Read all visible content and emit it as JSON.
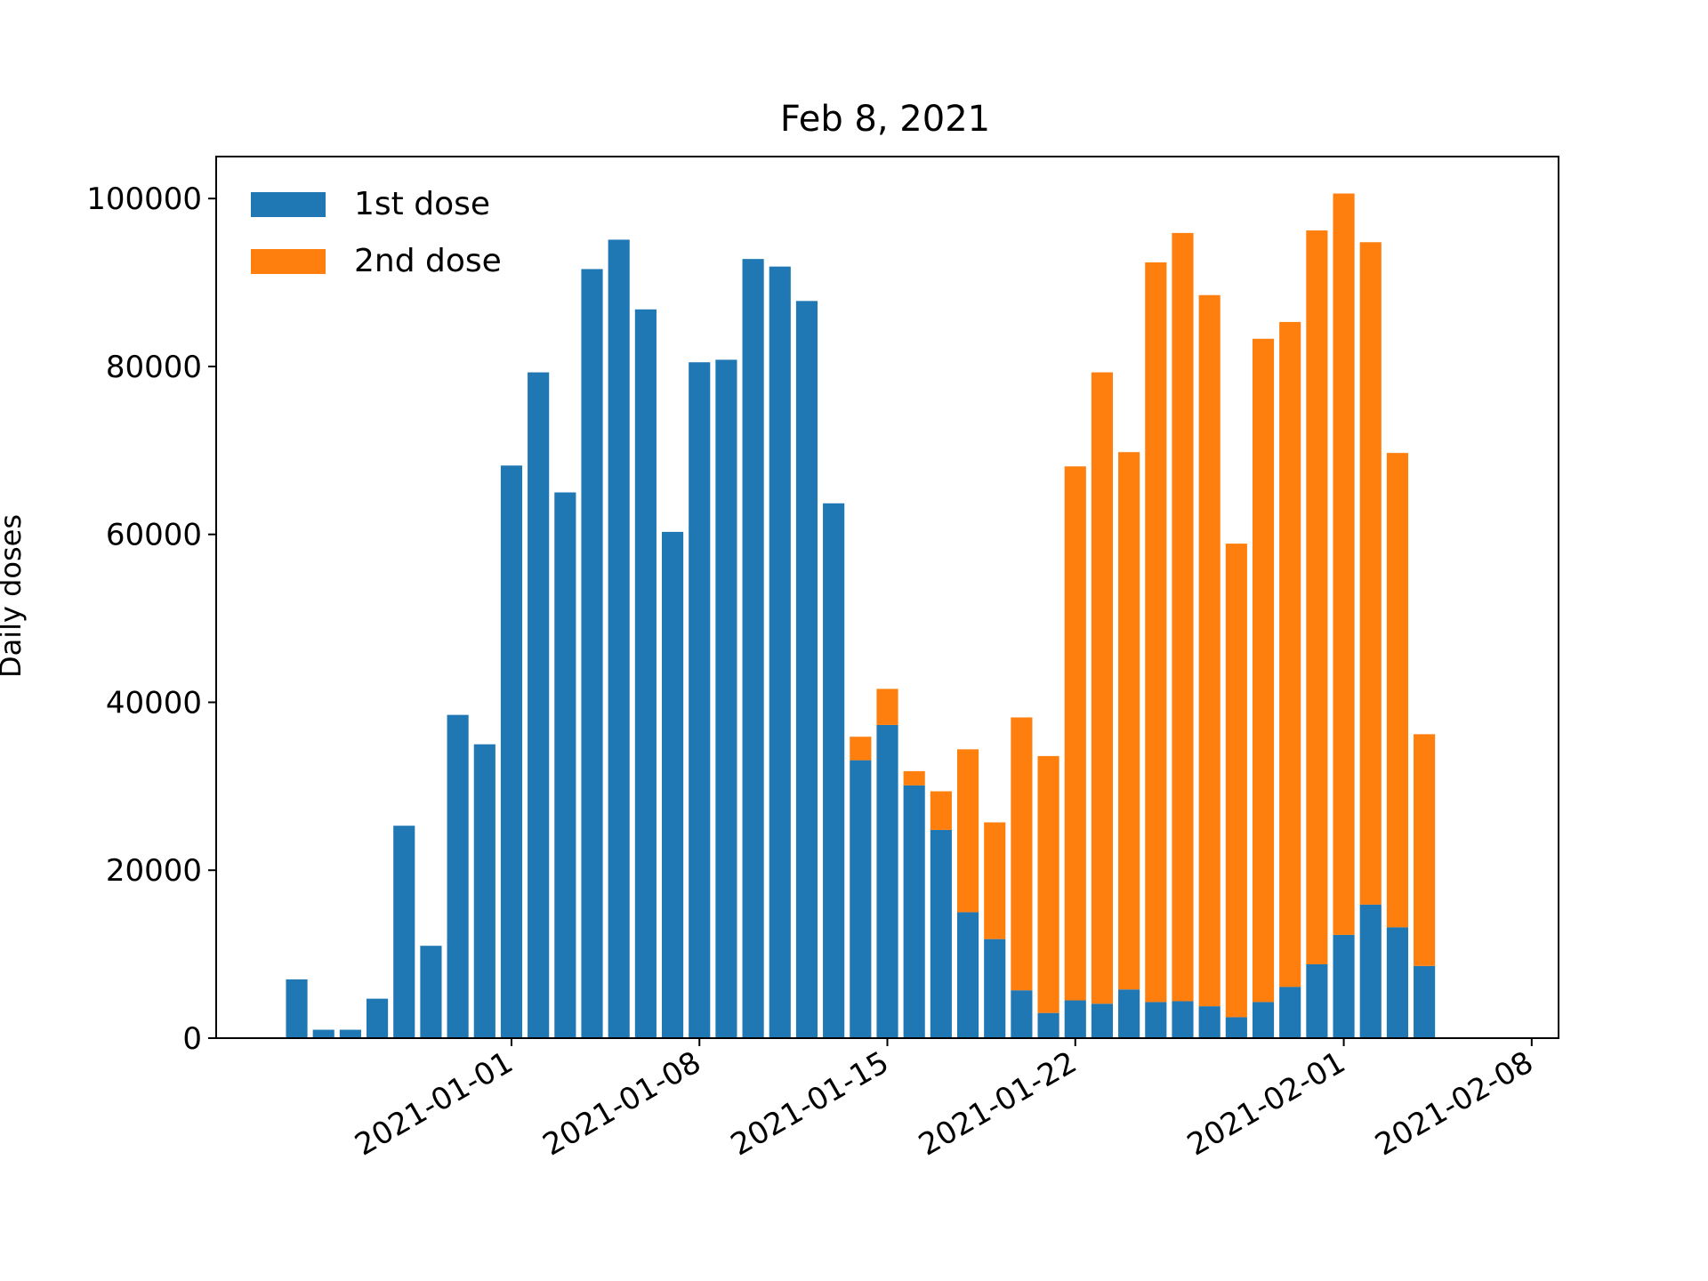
{
  "chart_data": {
    "type": "bar",
    "stacked": true,
    "title": "Feb 8, 2021",
    "xlabel": "",
    "ylabel": "Daily doses",
    "ylim": [
      0,
      105000
    ],
    "yticks": [
      0,
      20000,
      40000,
      60000,
      80000,
      100000
    ],
    "xlim": [
      "2020-12-21",
      "2021-02-09"
    ],
    "xticks": [
      "2021-01-01",
      "2021-01-08",
      "2021-01-15",
      "2021-01-22",
      "2021-02-01",
      "2021-02-08"
    ],
    "xtick_rotation": 30,
    "grid": false,
    "legend_position": "top-left",
    "dates": [
      "2020-12-24",
      "2020-12-25",
      "2020-12-26",
      "2020-12-27",
      "2020-12-28",
      "2020-12-29",
      "2020-12-30",
      "2020-12-31",
      "2021-01-01",
      "2021-01-02",
      "2021-01-03",
      "2021-01-04",
      "2021-01-05",
      "2021-01-06",
      "2021-01-07",
      "2021-01-08",
      "2021-01-09",
      "2021-01-10",
      "2021-01-11",
      "2021-01-12",
      "2021-01-13",
      "2021-01-14",
      "2021-01-15",
      "2021-01-16",
      "2021-01-17",
      "2021-01-18",
      "2021-01-19",
      "2021-01-20",
      "2021-01-21",
      "2021-01-22",
      "2021-01-23",
      "2021-01-24",
      "2021-01-25",
      "2021-01-26",
      "2021-01-27",
      "2021-01-28",
      "2021-01-29",
      "2021-01-30",
      "2021-01-31",
      "2021-02-01",
      "2021-02-02",
      "2021-02-03",
      "2021-02-04",
      "2021-02-05",
      "2021-02-06",
      "2021-02-07"
    ],
    "series": [
      {
        "name": "1st dose",
        "color": "#1f77b4",
        "values": [
          7000,
          1000,
          1000,
          4700,
          25300,
          11000,
          38500,
          35000,
          68200,
          79300,
          65000,
          91600,
          95100,
          86800,
          60300,
          80500,
          80800,
          92800,
          91900,
          87800,
          63700,
          33100,
          37300,
          30100,
          24800,
          15000,
          11800,
          5700,
          3000,
          4500,
          4100,
          5800,
          4300,
          4400,
          3800,
          2500,
          4300,
          6100,
          8800,
          12300,
          15900,
          13200,
          8600,
          0,
          0,
          0
        ]
      },
      {
        "name": "2nd dose",
        "color": "#ff7f0e",
        "values": [
          0,
          0,
          0,
          0,
          0,
          0,
          0,
          0,
          0,
          0,
          0,
          0,
          0,
          0,
          0,
          0,
          0,
          0,
          0,
          0,
          0,
          2800,
          4300,
          1700,
          4600,
          19400,
          13900,
          32500,
          30600,
          63600,
          75200,
          64000,
          88100,
          91500,
          84700,
          56400,
          79000,
          79200,
          87400,
          88300,
          78900,
          56500,
          27600,
          0,
          0,
          0
        ]
      }
    ]
  }
}
